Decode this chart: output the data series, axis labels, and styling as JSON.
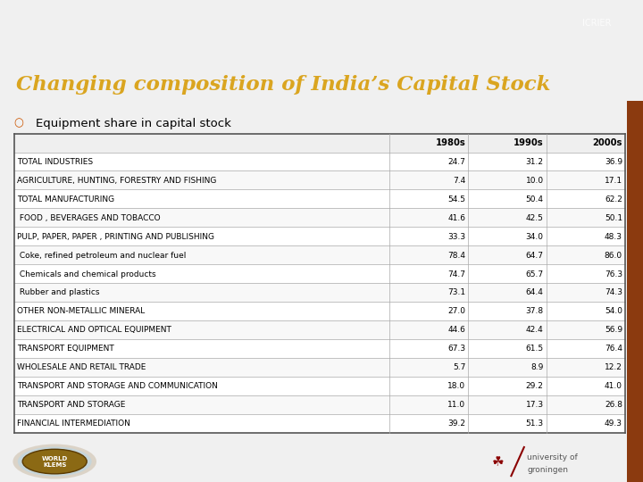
{
  "title": "Changing composition of India’s Capital Stock",
  "subtitle": "Equipment share in capital stock",
  "header": [
    "",
    "1980s",
    "1990s",
    "2000s"
  ],
  "rows": [
    [
      "TOTAL INDUSTRIES",
      "24.7",
      "31.2",
      "36.9"
    ],
    [
      "AGRICULTURE, HUNTING, FORESTRY AND FISHING",
      "7.4",
      "10.0",
      "17.1"
    ],
    [
      "TOTAL MANUFACTURING",
      "54.5",
      "50.4",
      "62.2"
    ],
    [
      " FOOD , BEVERAGES AND TOBACCO",
      "41.6",
      "42.5",
      "50.1"
    ],
    [
      "PULP, PAPER, PAPER , PRINTING AND PUBLISHING",
      "33.3",
      "34.0",
      "48.3"
    ],
    [
      " Coke, refined petroleum and nuclear fuel",
      "78.4",
      "64.7",
      "86.0"
    ],
    [
      " Chemicals and chemical products",
      "74.7",
      "65.7",
      "76.3"
    ],
    [
      " Rubber and plastics",
      "73.1",
      "64.4",
      "74.3"
    ],
    [
      "OTHER NON-METALLIC MINERAL",
      "27.0",
      "37.8",
      "54.0"
    ],
    [
      "ELECTRICAL AND OPTICAL EQUIPMENT",
      "44.6",
      "42.4",
      "56.9"
    ],
    [
      "TRANSPORT EQUIPMENT",
      "67.3",
      "61.5",
      "76.4"
    ],
    [
      "WHOLESALE AND RETAIL TRADE",
      "5.7",
      "8.9",
      "12.2"
    ],
    [
      "TRANSPORT AND STORAGE AND COMMUNICATION",
      "18.0",
      "29.2",
      "41.0"
    ],
    [
      "TRANSPORT AND STORAGE",
      "11.0",
      "17.3",
      "26.8"
    ],
    [
      "FINANCIAL INTERMEDIATION",
      "39.2",
      "51.3",
      "49.3"
    ]
  ],
  "top_bar_color": "#000000",
  "brown_bar_color": "#8B3A0F",
  "title_bg_color": "#1a1a1a",
  "title_color": "#DAA520",
  "content_bg_color": "#f0f0f0",
  "table_bg_white": "#ffffff",
  "table_border_color": "#888888",
  "table_text_color": "#000000",
  "bullet_color": "#CC5500",
  "subtitle_color": "#000000",
  "bottom_bg_color": "#e8e8e8",
  "worldklems_oval_color": "#8B6914",
  "worldklems_glow_color": "#c8b8a0"
}
